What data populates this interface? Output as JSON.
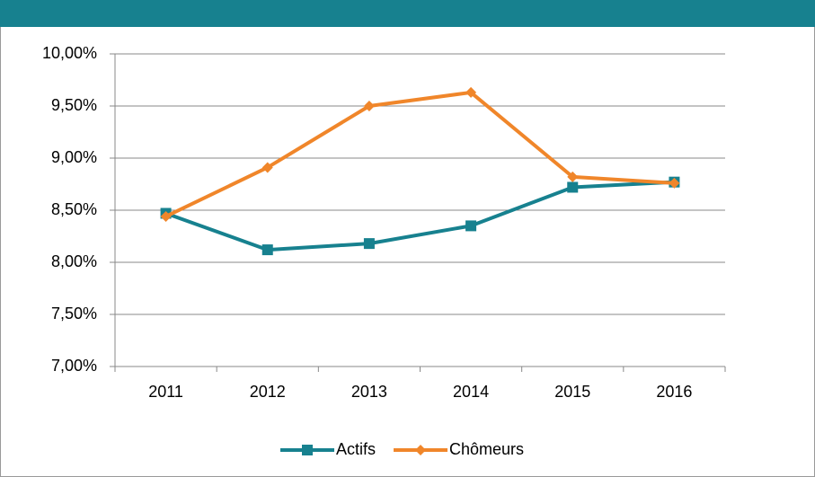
{
  "chart_data": {
    "type": "line",
    "categories": [
      "2011",
      "2012",
      "2013",
      "2014",
      "2015",
      "2016"
    ],
    "series": [
      {
        "name": "Actifs",
        "color": "#17818f",
        "marker": "square",
        "values": [
          8.47,
          8.12,
          8.18,
          8.35,
          8.72,
          8.77
        ]
      },
      {
        "name": "Chômeurs",
        "color": "#f0862a",
        "marker": "diamond",
        "values": [
          8.44,
          8.91,
          9.5,
          9.63,
          8.82,
          8.76
        ]
      }
    ],
    "ylim": [
      7,
      10
    ],
    "yticks": [
      {
        "value": 7,
        "label": "7,00%"
      },
      {
        "value": 7.5,
        "label": "7,50%"
      },
      {
        "value": 8,
        "label": "8,00%"
      },
      {
        "value": 8.5,
        "label": "8,50%"
      },
      {
        "value": 9,
        "label": "9,00%"
      },
      {
        "value": 9.5,
        "label": "9,50%"
      },
      {
        "value": 10,
        "label": "10,00%"
      }
    ],
    "grid": true,
    "legend": "bottom"
  }
}
